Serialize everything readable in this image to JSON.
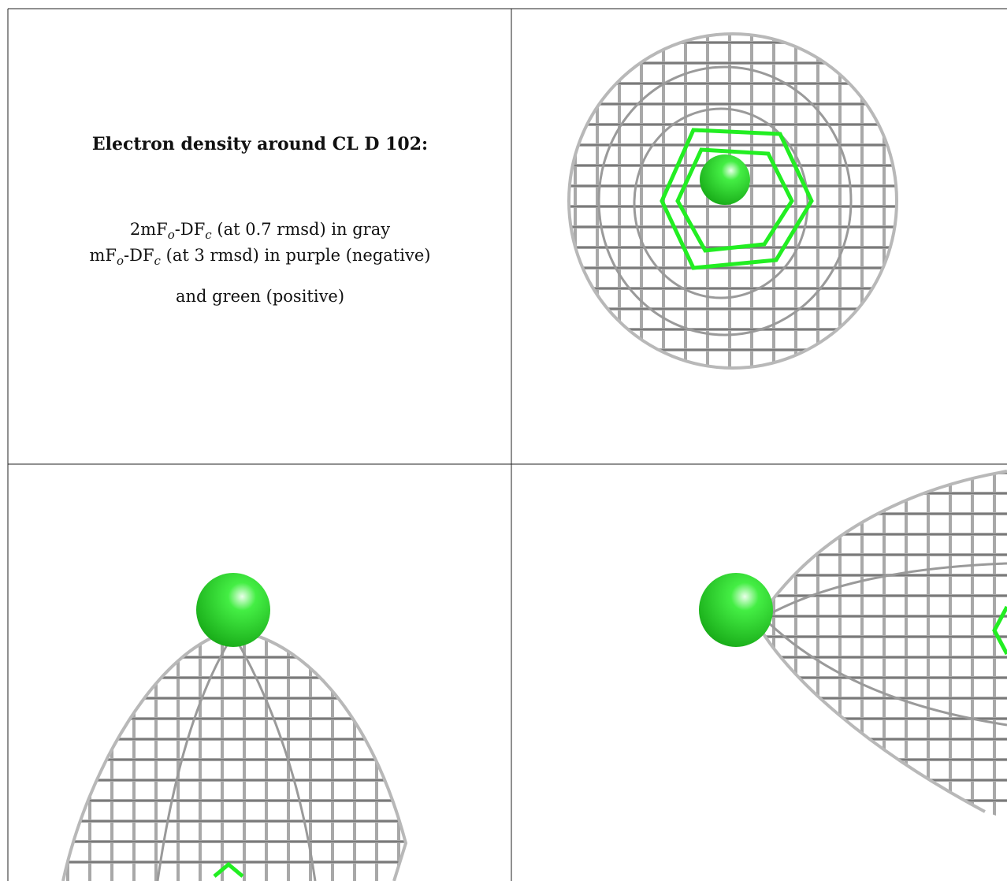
{
  "caption": {
    "title": "Electron density around CL D 102:",
    "lines": [
      [
        "2mF",
        "o",
        "-DF",
        "c",
        " (at 0.7 rmsd) in gray"
      ],
      [
        "mF",
        "o",
        "-DF",
        "c",
        " (at 3 rmsd) in purple (negative)"
      ],
      [
        "and green (positive)"
      ]
    ]
  }
}
